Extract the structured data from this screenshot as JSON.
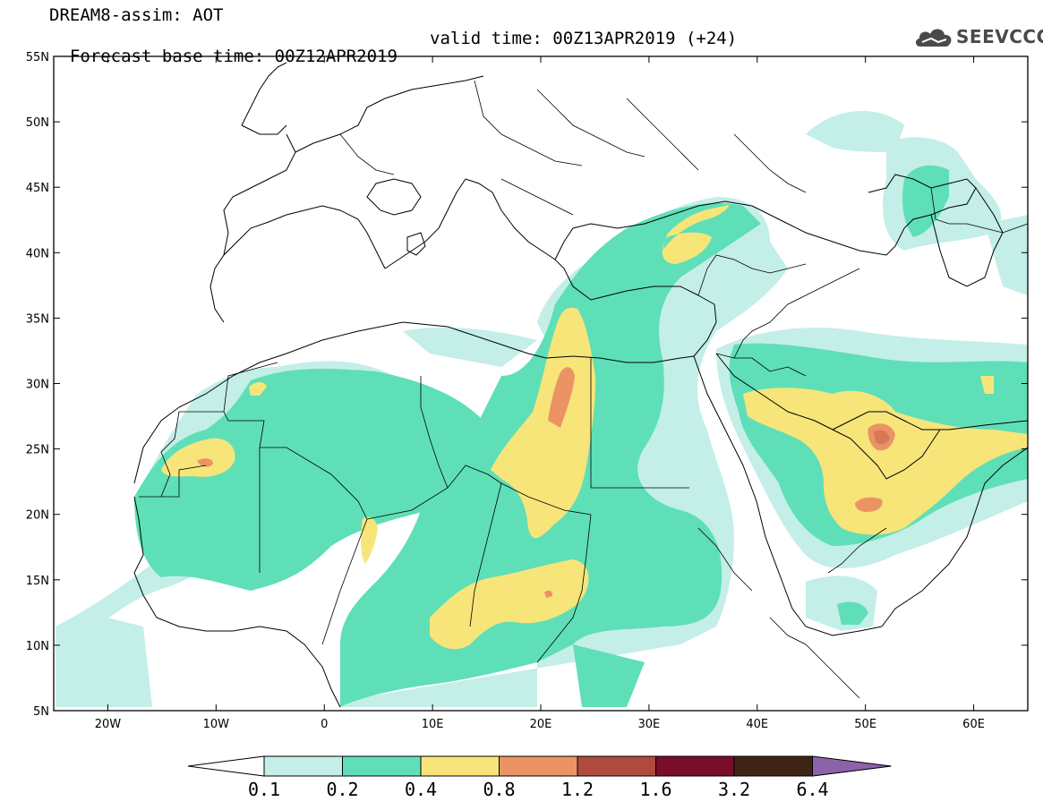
{
  "header": {
    "line1": "DREAM8-assim: AOT",
    "line2_base": "Forecast base time: 00Z12APR2019",
    "line2_valid": "valid time: 00Z13APR2019 (+24)"
  },
  "logo": {
    "text": "SEEVCCC",
    "icon": "cloud-icon"
  },
  "map": {
    "lon_range": [
      -25,
      65
    ],
    "lat_range": [
      5,
      55
    ],
    "lat_ticks": [
      "5N",
      "10N",
      "15N",
      "20N",
      "25N",
      "30N",
      "35N",
      "40N",
      "45N",
      "50N",
      "55N"
    ],
    "lat_tick_values": [
      5,
      10,
      15,
      20,
      25,
      30,
      35,
      40,
      45,
      50,
      55
    ],
    "lon_ticks": [
      "20W",
      "10W",
      "0",
      "10E",
      "20E",
      "30E",
      "40E",
      "50E",
      "60E"
    ],
    "lon_tick_values": [
      -20,
      -10,
      0,
      10,
      20,
      30,
      40,
      50,
      60
    ]
  },
  "colorbar": {
    "labels": [
      "0.1",
      "0.2",
      "0.4",
      "0.8",
      "1.2",
      "1.6",
      "3.2",
      "6.4"
    ],
    "colors": [
      "#c4eee8",
      "#5fdfb7",
      "#f7e57a",
      "#ec9364",
      "#b04a3f",
      "#7a0d2b",
      "#3f2416",
      "#8c62a8"
    ]
  }
}
